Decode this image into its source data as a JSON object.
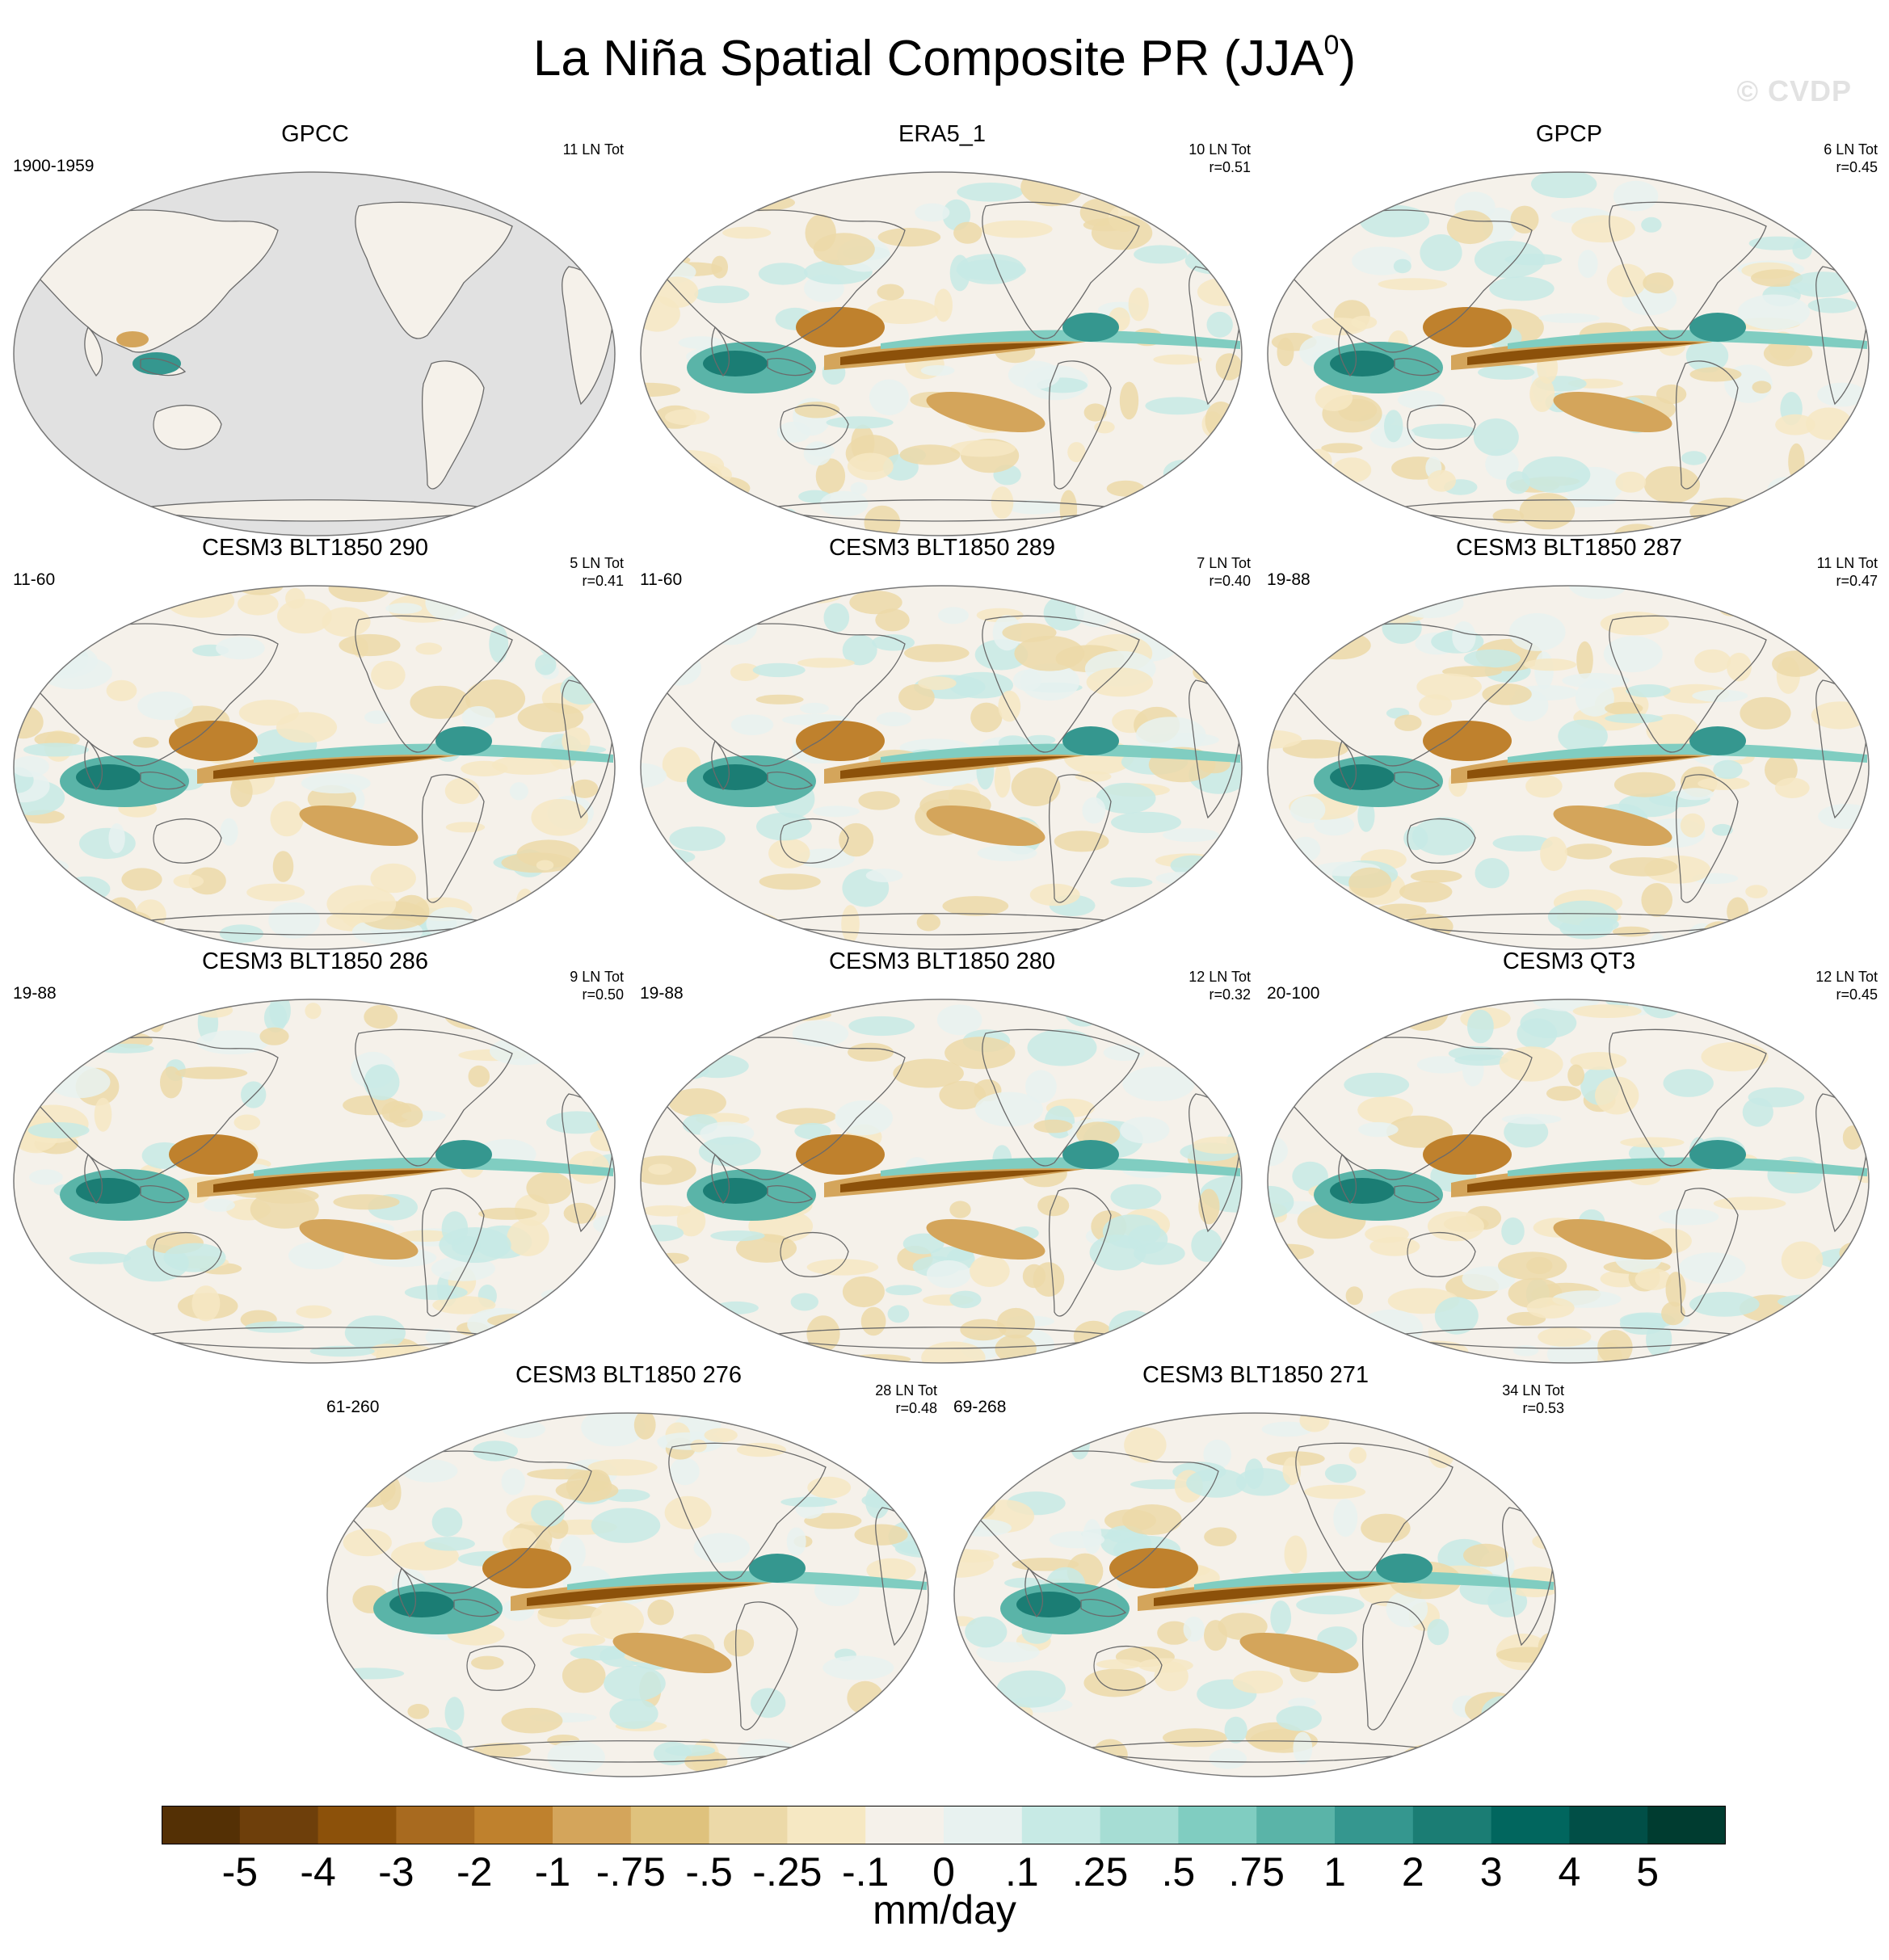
{
  "title": {
    "main": "La Niña Spatial Composite PR (JJA",
    "superscript": "0",
    "closing": ")"
  },
  "watermark": "© CVDP",
  "palette": [
    "#543005",
    "#6e3f0b",
    "#8c510a",
    "#a86a1f",
    "#bf812d",
    "#d4a55b",
    "#dfc27d",
    "#ecd9a8",
    "#f6e8c3",
    "#f5f1ea",
    "#e8f2f0",
    "#c7eae5",
    "#a6ddd4",
    "#80cdc1",
    "#5ab4a8",
    "#35978f",
    "#1b7d74",
    "#01665e",
    "#014f47",
    "#003c30"
  ],
  "land_mask_color": "#e1e1e1",
  "panels": [
    {
      "title": "GPCC",
      "period": "1900-1959",
      "ln_tot": "11 LN Tot",
      "r": "",
      "row": 0,
      "col": 0,
      "gpcc_masked": true
    },
    {
      "title": "ERA5_1",
      "period": "",
      "ln_tot": "10 LN Tot",
      "r": "r=0.51",
      "row": 0,
      "col": 1
    },
    {
      "title": "GPCP",
      "period": "",
      "ln_tot": "6 LN Tot",
      "r": "r=0.45",
      "row": 0,
      "col": 2
    },
    {
      "title": "CESM3 BLT1850 290",
      "period": "11-60",
      "ln_tot": "5 LN Tot",
      "r": "r=0.41",
      "row": 1,
      "col": 0
    },
    {
      "title": "CESM3 BLT1850 289",
      "period": "11-60",
      "ln_tot": "7 LN Tot",
      "r": "r=0.40",
      "row": 1,
      "col": 1
    },
    {
      "title": "CESM3 BLT1850 287",
      "period": "19-88",
      "ln_tot": "11 LN Tot",
      "r": "r=0.47",
      "row": 1,
      "col": 2
    },
    {
      "title": "CESM3 BLT1850 286",
      "period": "19-88",
      "ln_tot": "9 LN Tot",
      "r": "r=0.50",
      "row": 2,
      "col": 0
    },
    {
      "title": "CESM3 BLT1850 280",
      "period": "19-88",
      "ln_tot": "12 LN Tot",
      "r": "r=0.32",
      "row": 2,
      "col": 1
    },
    {
      "title": "CESM3 QT3",
      "period": "20-100",
      "ln_tot": "12 LN Tot",
      "r": "r=0.45",
      "row": 2,
      "col": 2
    },
    {
      "title": "CESM3 BLT1850 276",
      "period": "61-260",
      "ln_tot": "28 LN Tot",
      "r": "r=0.48",
      "row": 3,
      "col": 0.5
    },
    {
      "title": "CESM3 BLT1850 271",
      "period": "69-268",
      "ln_tot": "34 LN Tot",
      "r": "r=0.53",
      "row": 3,
      "col": 1.5
    }
  ],
  "colorbar": {
    "labels": [
      "-5",
      "-4",
      "-3",
      "-2",
      "-1",
      "-.75",
      "-.5",
      "-.25",
      "-.1",
      "0",
      ".1",
      ".25",
      ".5",
      ".75",
      "1",
      "2",
      "3",
      "4",
      "5"
    ],
    "units": "mm/day"
  }
}
